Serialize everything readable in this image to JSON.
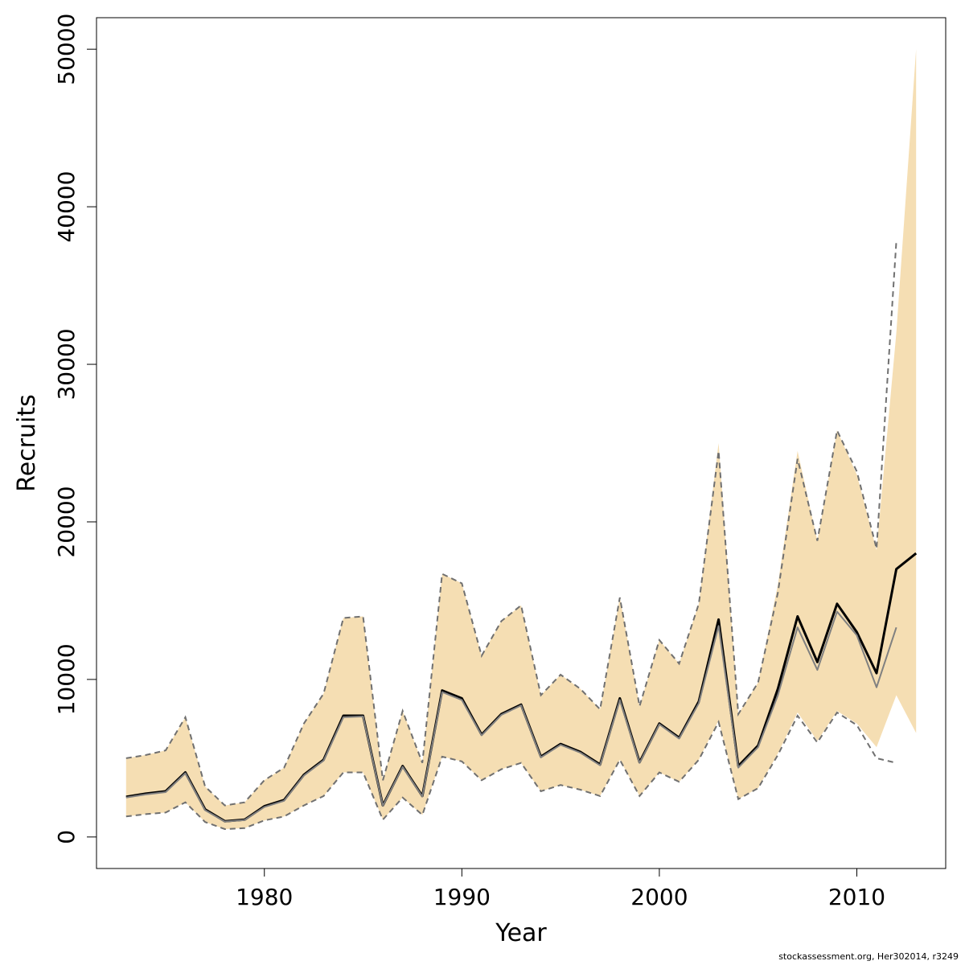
{
  "chart_data": {
    "type": "line",
    "title": "",
    "xlabel": "Year",
    "ylabel": "Recruits",
    "xlim": [
      1971.5,
      2014.5
    ],
    "ylim": [
      -2000,
      52000
    ],
    "xticks": [
      1980,
      1990,
      2000,
      2010
    ],
    "xtick_labels": [
      "1980",
      "1990",
      "2000",
      "2010"
    ],
    "yticks": [
      0,
      10000,
      20000,
      30000,
      40000,
      50000
    ],
    "ytick_labels": [
      "0",
      "10000",
      "20000",
      "30000",
      "40000",
      "50000"
    ],
    "grid": false,
    "legend": "none",
    "colors": {
      "band": "#F5DEB3",
      "current": "#000000",
      "previous": "#808080",
      "previous_ci": "#707070"
    },
    "series": [
      {
        "role": "current-upper",
        "x": [
          1973,
          1974,
          1975,
          1976,
          1977,
          1978,
          1979,
          1980,
          1981,
          1982,
          1983,
          1984,
          1985,
          1986,
          1987,
          1988,
          1989,
          1990,
          1991,
          1992,
          1993,
          1994,
          1995,
          1996,
          1997,
          1998,
          1999,
          2000,
          2001,
          2002,
          2003,
          2004,
          2005,
          2006,
          2007,
          2008,
          2009,
          2010,
          2011,
          2012,
          2013
        ],
        "values": [
          5000,
          5200,
          5500,
          7600,
          3200,
          2000,
          2200,
          3600,
          4400,
          7200,
          9100,
          13900,
          14000,
          3600,
          8000,
          4700,
          16700,
          16100,
          11500,
          13700,
          14700,
          9000,
          10300,
          9400,
          8100,
          15200,
          8300,
          12500,
          11000,
          14800,
          25000,
          7800,
          9800,
          16000,
          24500,
          18800,
          25800,
          23000,
          18200,
          32000,
          50000
        ]
      },
      {
        "role": "current-lower",
        "x": [
          1973,
          1974,
          1975,
          1976,
          1977,
          1978,
          1979,
          1980,
          1981,
          1982,
          1983,
          1984,
          1985,
          1986,
          1987,
          1988,
          1989,
          1990,
          1991,
          1992,
          1993,
          1994,
          1995,
          1996,
          1997,
          1998,
          1999,
          2000,
          2001,
          2002,
          2003,
          2004,
          2005,
          2006,
          2007,
          2008,
          2009,
          2010,
          2011,
          2012,
          2013
        ],
        "values": [
          1300,
          1450,
          1550,
          2200,
          950,
          500,
          560,
          1050,
          1300,
          2000,
          2600,
          4100,
          4100,
          1100,
          2500,
          1400,
          5100,
          4800,
          3600,
          4300,
          4700,
          2900,
          3300,
          3000,
          2600,
          4900,
          2600,
          4100,
          3500,
          4900,
          7400,
          2400,
          3100,
          5300,
          7900,
          6100,
          8000,
          7200,
          5700,
          9000,
          6600
        ]
      },
      {
        "name": "",
        "role": "current-estimate",
        "x": [
          1973,
          1974,
          1975,
          1976,
          1977,
          1978,
          1979,
          1980,
          1981,
          1982,
          1983,
          1984,
          1985,
          1986,
          1987,
          1988,
          1989,
          1990,
          1991,
          1992,
          1993,
          1994,
          1995,
          1996,
          1997,
          1998,
          1999,
          2000,
          2001,
          2002,
          2003,
          2004,
          2005,
          2006,
          2007,
          2008,
          2009,
          2010,
          2011,
          2012,
          2013
        ],
        "values": [
          2550,
          2750,
          2900,
          4100,
          1750,
          1000,
          1100,
          1950,
          2350,
          3950,
          4900,
          7700,
          7700,
          2000,
          4500,
          2600,
          9300,
          8800,
          6500,
          7800,
          8400,
          5100,
          5900,
          5400,
          4600,
          8800,
          4750,
          7200,
          6300,
          8600,
          13800,
          4500,
          5800,
          9400,
          14000,
          11100,
          14800,
          13000,
          10400,
          17000,
          18000
        ]
      },
      {
        "name": "",
        "role": "previous-estimate",
        "x": [
          1973,
          1974,
          1975,
          1976,
          1977,
          1978,
          1979,
          1980,
          1981,
          1982,
          1983,
          1984,
          1985,
          1986,
          1987,
          1988,
          1989,
          1990,
          1991,
          1992,
          1993,
          1994,
          1995,
          1996,
          1997,
          1998,
          1999,
          2000,
          2001,
          2002,
          2003,
          2004,
          2005,
          2006,
          2007,
          2008,
          2009,
          2010,
          2011,
          2012
        ],
        "values": [
          2500,
          2700,
          2850,
          4050,
          1700,
          980,
          1080,
          1900,
          2300,
          3900,
          4850,
          7600,
          7650,
          1980,
          4450,
          2570,
          9200,
          8700,
          6450,
          7750,
          8350,
          5050,
          5850,
          5350,
          4550,
          8700,
          4700,
          7150,
          6250,
          8500,
          13400,
          4400,
          5700,
          9000,
          13300,
          10600,
          14300,
          12800,
          9500,
          13300
        ]
      },
      {
        "role": "previous-upper",
        "x": [
          1973,
          1974,
          1975,
          1976,
          1977,
          1978,
          1979,
          1980,
          1981,
          1982,
          1983,
          1984,
          1985,
          1986,
          1987,
          1988,
          1989,
          1990,
          1991,
          1992,
          1993,
          1994,
          1995,
          1996,
          1997,
          1998,
          1999,
          2000,
          2001,
          2002,
          2003,
          2004,
          2005,
          2006,
          2007,
          2008,
          2009,
          2010,
          2011,
          2012
        ],
        "values": [
          5000,
          5200,
          5500,
          7600,
          3200,
          2000,
          2200,
          3600,
          4400,
          7200,
          9100,
          13900,
          14000,
          3600,
          8000,
          4700,
          16700,
          16100,
          11500,
          13700,
          14700,
          9000,
          10300,
          9400,
          8100,
          15200,
          8300,
          12500,
          11000,
          14800,
          24500,
          7800,
          9800,
          15500,
          24000,
          18800,
          25800,
          23200,
          18300,
          37800
        ]
      },
      {
        "role": "previous-lower",
        "x": [
          1973,
          1974,
          1975,
          1976,
          1977,
          1978,
          1979,
          1980,
          1981,
          1982,
          1983,
          1984,
          1985,
          1986,
          1987,
          1988,
          1989,
          1990,
          1991,
          1992,
          1993,
          1994,
          1995,
          1996,
          1997,
          1998,
          1999,
          2000,
          2001,
          2002,
          2003,
          2004,
          2005,
          2006,
          2007,
          2008,
          2009,
          2010,
          2011,
          2012
        ],
        "values": [
          1300,
          1450,
          1550,
          2200,
          950,
          500,
          560,
          1050,
          1300,
          2000,
          2600,
          4100,
          4100,
          1100,
          2500,
          1400,
          5100,
          4800,
          3600,
          4300,
          4700,
          2900,
          3300,
          3000,
          2600,
          4900,
          2600,
          4100,
          3500,
          4900,
          7300,
          2400,
          3100,
          5200,
          7700,
          6000,
          7900,
          7100,
          5000,
          4700
        ]
      }
    ]
  },
  "footnote": "stockassessment.org, Her302014, r3249"
}
